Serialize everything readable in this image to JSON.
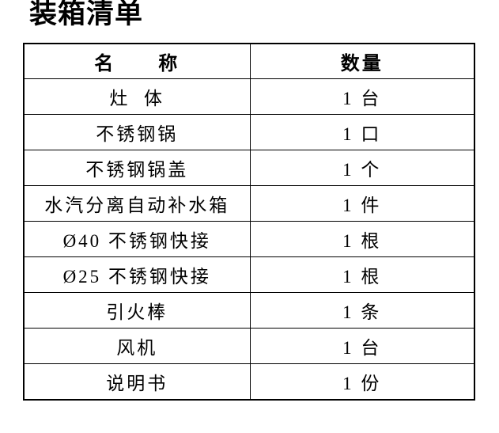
{
  "page": {
    "title": "装箱清单",
    "background_color": "#ffffff",
    "text_color": "#000000",
    "border_color": "#000000"
  },
  "table": {
    "headers": {
      "name": "名　　称",
      "qty": "数量"
    },
    "rows": [
      {
        "name": "灶  体",
        "qty": "1 台"
      },
      {
        "name": "不锈钢锅",
        "qty": "1 口"
      },
      {
        "name": "不锈钢锅盖",
        "qty": "1 个"
      },
      {
        "name": "水汽分离自动补水箱",
        "qty": "1 件"
      },
      {
        "name": "Ø40 不锈钢快接",
        "qty": "1 根"
      },
      {
        "name": "Ø25 不锈钢快接",
        "qty": "1 根"
      },
      {
        "name": "引火棒",
        "qty": "1 条"
      },
      {
        "name": "风机",
        "qty": "1 台"
      },
      {
        "name": "说明书",
        "qty": "1 份"
      }
    ]
  }
}
